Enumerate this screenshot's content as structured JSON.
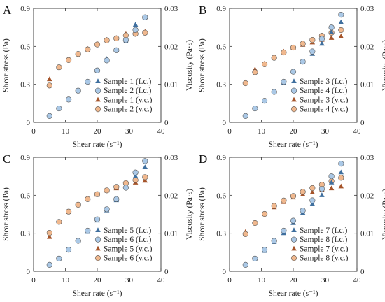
{
  "colors": {
    "fc_triangle": "#3f6f9e",
    "fc_circle": "#aac8e6",
    "vc_triangle": "#a5542a",
    "vc_circle": "#f0b88e",
    "edge": "#555555"
  },
  "chart_data": [
    {
      "type": "scatter",
      "panel_label": "A",
      "xlabel": "Shear rate (s⁻¹)",
      "ylabel_left": "Shear stress (Pa)",
      "ylabel_right": "Viscosity (Pa·s)",
      "xlim": [
        0,
        40
      ],
      "xticks": [
        "0",
        "10",
        "20",
        "30",
        "40"
      ],
      "ylim_left": [
        0,
        0.9
      ],
      "yticks_left": [
        "0",
        "0.3",
        "0.6",
        "0.9"
      ],
      "ylim_right": [
        0,
        0.03
      ],
      "yticks_right": [
        "0",
        "0.01",
        "0.02",
        "0.03"
      ],
      "grid": false,
      "legend_position": "bottom-right",
      "x": [
        5,
        8,
        11,
        14,
        17,
        20,
        23,
        26,
        29,
        32,
        35
      ],
      "series": [
        {
          "name": "Sample 1 (f.c.)",
          "axis": "left",
          "marker": "triangle",
          "values": [
            0.05,
            0.11,
            0.18,
            0.25,
            0.32,
            0.41,
            0.5,
            0.57,
            0.64,
            0.77,
            0.83
          ]
        },
        {
          "name": "Sample 2 (f.c.)",
          "axis": "left",
          "marker": "circle",
          "values": [
            0.05,
            0.11,
            0.18,
            0.25,
            0.32,
            0.41,
            0.49,
            0.57,
            0.65,
            0.73,
            0.83
          ]
        },
        {
          "name": "Sample 1 (v.c.)",
          "axis": "right",
          "marker": "triangle",
          "values": [
            0.0113,
            0.0146,
            0.0165,
            0.018,
            0.0193,
            0.0206,
            0.0217,
            0.0222,
            0.0232,
            0.0236,
            0.0238
          ]
        },
        {
          "name": "Sample 2 (v.c.)",
          "axis": "right",
          "marker": "circle",
          "values": [
            0.0097,
            0.0145,
            0.0164,
            0.018,
            0.0192,
            0.0205,
            0.0216,
            0.0221,
            0.0229,
            0.0233,
            0.0236
          ]
        }
      ]
    },
    {
      "type": "scatter",
      "panel_label": "B",
      "xlabel": "Shear rate (s⁻¹)",
      "ylabel_left": "Shear stress (Pa)",
      "ylabel_right": "Viscosity (Pa·s)",
      "xlim": [
        0,
        40
      ],
      "xticks": [
        "0",
        "10",
        "20",
        "30",
        "40"
      ],
      "ylim_left": [
        0,
        0.9
      ],
      "yticks_left": [
        "0",
        "0.3",
        "0.6",
        "0.9"
      ],
      "ylim_right": [
        0,
        0.03
      ],
      "yticks_right": [
        "0",
        "0.01",
        "0.02",
        "0.03"
      ],
      "grid": false,
      "legend_position": "bottom-right",
      "x": [
        5,
        8,
        11,
        14,
        17,
        20,
        23,
        26,
        29,
        32,
        35
      ],
      "series": [
        {
          "name": "Sample 3 (f.c.)",
          "axis": "left",
          "marker": "triangle",
          "values": [
            0.05,
            0.11,
            0.17,
            0.24,
            0.31,
            0.4,
            0.48,
            0.54,
            0.62,
            0.71,
            0.79
          ]
        },
        {
          "name": "Sample 4 (f.c.)",
          "axis": "left",
          "marker": "circle",
          "values": [
            0.05,
            0.11,
            0.17,
            0.24,
            0.32,
            0.4,
            0.48,
            0.56,
            0.66,
            0.75,
            0.85
          ]
        },
        {
          "name": "Sample 3 (v.c.)",
          "axis": "right",
          "marker": "triangle",
          "values": [
            0.0105,
            0.0139,
            0.0155,
            0.0172,
            0.0186,
            0.0196,
            0.0204,
            0.021,
            0.0217,
            0.0222,
            0.0226
          ]
        },
        {
          "name": "Sample 4 (v.c.)",
          "axis": "right",
          "marker": "circle",
          "values": [
            0.0103,
            0.0132,
            0.0153,
            0.017,
            0.0184,
            0.0197,
            0.0207,
            0.0217,
            0.0228,
            0.0236,
            0.0243
          ]
        }
      ]
    },
    {
      "type": "scatter",
      "panel_label": "C",
      "xlabel": "Shear rate (s⁻¹)",
      "ylabel_left": "Shear stress (Pa)",
      "ylabel_right": "Viscosity (Pa·s)",
      "xlim": [
        0,
        40
      ],
      "xticks": [
        "0",
        "10",
        "20",
        "30",
        "40"
      ],
      "ylim_left": [
        0,
        0.9
      ],
      "yticks_left": [
        "0",
        "0.3",
        "0.6",
        "0.9"
      ],
      "ylim_right": [
        0,
        0.03
      ],
      "yticks_right": [
        "0",
        "0.01",
        "0.02",
        "0.03"
      ],
      "grid": false,
      "legend_position": "bottom-right",
      "x": [
        5,
        8,
        11,
        14,
        17,
        20,
        23,
        26,
        29,
        32,
        35
      ],
      "series": [
        {
          "name": "Sample 5 (f.c.)",
          "axis": "left",
          "marker": "triangle",
          "values": [
            0.05,
            0.1,
            0.17,
            0.24,
            0.31,
            0.4,
            0.48,
            0.56,
            0.66,
            0.75,
            0.82
          ]
        },
        {
          "name": "Sample 6 (f.c.)",
          "axis": "left",
          "marker": "circle",
          "values": [
            0.05,
            0.1,
            0.17,
            0.24,
            0.32,
            0.41,
            0.49,
            0.57,
            0.66,
            0.78,
            0.87
          ]
        },
        {
          "name": "Sample 5 (v.c.)",
          "axis": "right",
          "marker": "triangle",
          "values": [
            0.009,
            0.0128,
            0.0156,
            0.0174,
            0.0189,
            0.0201,
            0.0212,
            0.0218,
            0.0226,
            0.0233,
            0.0238
          ]
        },
        {
          "name": "Sample 6 (v.c.)",
          "axis": "right",
          "marker": "circle",
          "values": [
            0.0101,
            0.013,
            0.0157,
            0.0175,
            0.019,
            0.0203,
            0.0213,
            0.0222,
            0.0232,
            0.024,
            0.0248
          ]
        }
      ]
    },
    {
      "type": "scatter",
      "panel_label": "D",
      "xlabel": "Shear rate (s⁻¹)",
      "ylabel_left": "Shear stress (Pa)",
      "ylabel_right": "Viscosity (Pa·s)",
      "xlim": [
        0,
        40
      ],
      "xticks": [
        "0",
        "10",
        "20",
        "30",
        "40"
      ],
      "ylim_left": [
        0,
        0.9
      ],
      "yticks_left": [
        "0",
        "0.3",
        "0.6",
        "0.9"
      ],
      "ylim_right": [
        0,
        0.03
      ],
      "yticks_right": [
        "0",
        "0.01",
        "0.02",
        "0.03"
      ],
      "grid": false,
      "legend_position": "bottom-right",
      "x": [
        5,
        8,
        11,
        14,
        17,
        20,
        23,
        26,
        29,
        32,
        35
      ],
      "series": [
        {
          "name": "Sample 7 (f.c.)",
          "axis": "left",
          "marker": "triangle",
          "values": [
            0.05,
            0.1,
            0.16,
            0.23,
            0.3,
            0.38,
            0.46,
            0.53,
            0.6,
            0.7,
            0.78
          ]
        },
        {
          "name": "Sample 8 (f.c.)",
          "axis": "left",
          "marker": "circle",
          "values": [
            0.05,
            0.1,
            0.17,
            0.24,
            0.32,
            0.4,
            0.48,
            0.56,
            0.65,
            0.75,
            0.85
          ]
        },
        {
          "name": "Sample 7 (v.c.)",
          "axis": "right",
          "marker": "triangle",
          "values": [
            0.0103,
            0.013,
            0.015,
            0.0168,
            0.0182,
            0.0194,
            0.0202,
            0.0207,
            0.0214,
            0.0218,
            0.0223
          ]
        },
        {
          "name": "Sample 8 (v.c.)",
          "axis": "right",
          "marker": "circle",
          "values": [
            0.0098,
            0.0127,
            0.0151,
            0.0172,
            0.0186,
            0.0198,
            0.0209,
            0.0219,
            0.0228,
            0.0237,
            0.0246
          ]
        }
      ]
    }
  ]
}
